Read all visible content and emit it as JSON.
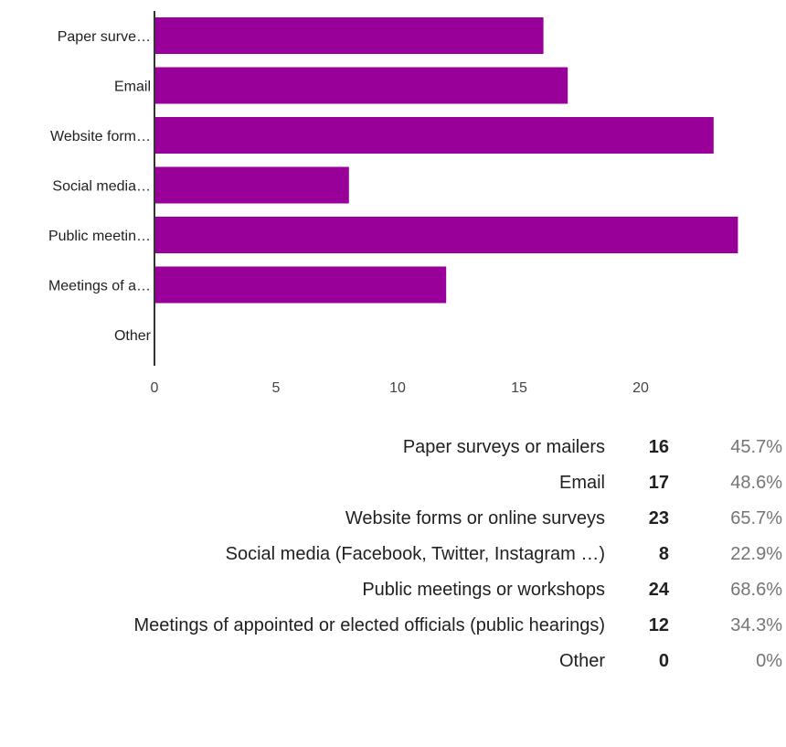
{
  "colors": {
    "bar": "#990099",
    "axis": "#333333",
    "pct_text": "#757575"
  },
  "chart_data": {
    "type": "bar",
    "orientation": "horizontal",
    "title": "",
    "xlabel": "",
    "ylabel": "",
    "categories": [
      "Paper surve…",
      "Email",
      "Website form…",
      "Social media…",
      "Public meetin…",
      "Meetings of a…",
      "Other"
    ],
    "values": [
      16,
      17,
      23,
      8,
      24,
      12,
      0
    ],
    "xticks": [
      "0",
      "5",
      "10",
      "15",
      "20"
    ],
    "xlim": [
      0,
      24
    ],
    "grid": false,
    "legend": "none"
  },
  "summary": [
    {
      "label": "Paper surveys or mailers",
      "count": "16",
      "pct": "45.7%"
    },
    {
      "label": "Email",
      "count": "17",
      "pct": "48.6%"
    },
    {
      "label": "Website forms or online surveys",
      "count": "23",
      "pct": "65.7%"
    },
    {
      "label": "Social media (Facebook, Twitter, Instagram …)",
      "count": "8",
      "pct": "22.9%"
    },
    {
      "label": "Public meetings or workshops",
      "count": "24",
      "pct": "68.6%"
    },
    {
      "label": "Meetings of appointed or elected officials (public hearings)",
      "count": "12",
      "pct": "34.3%"
    },
    {
      "label": "Other",
      "count": "0",
      "pct": "0%"
    }
  ]
}
